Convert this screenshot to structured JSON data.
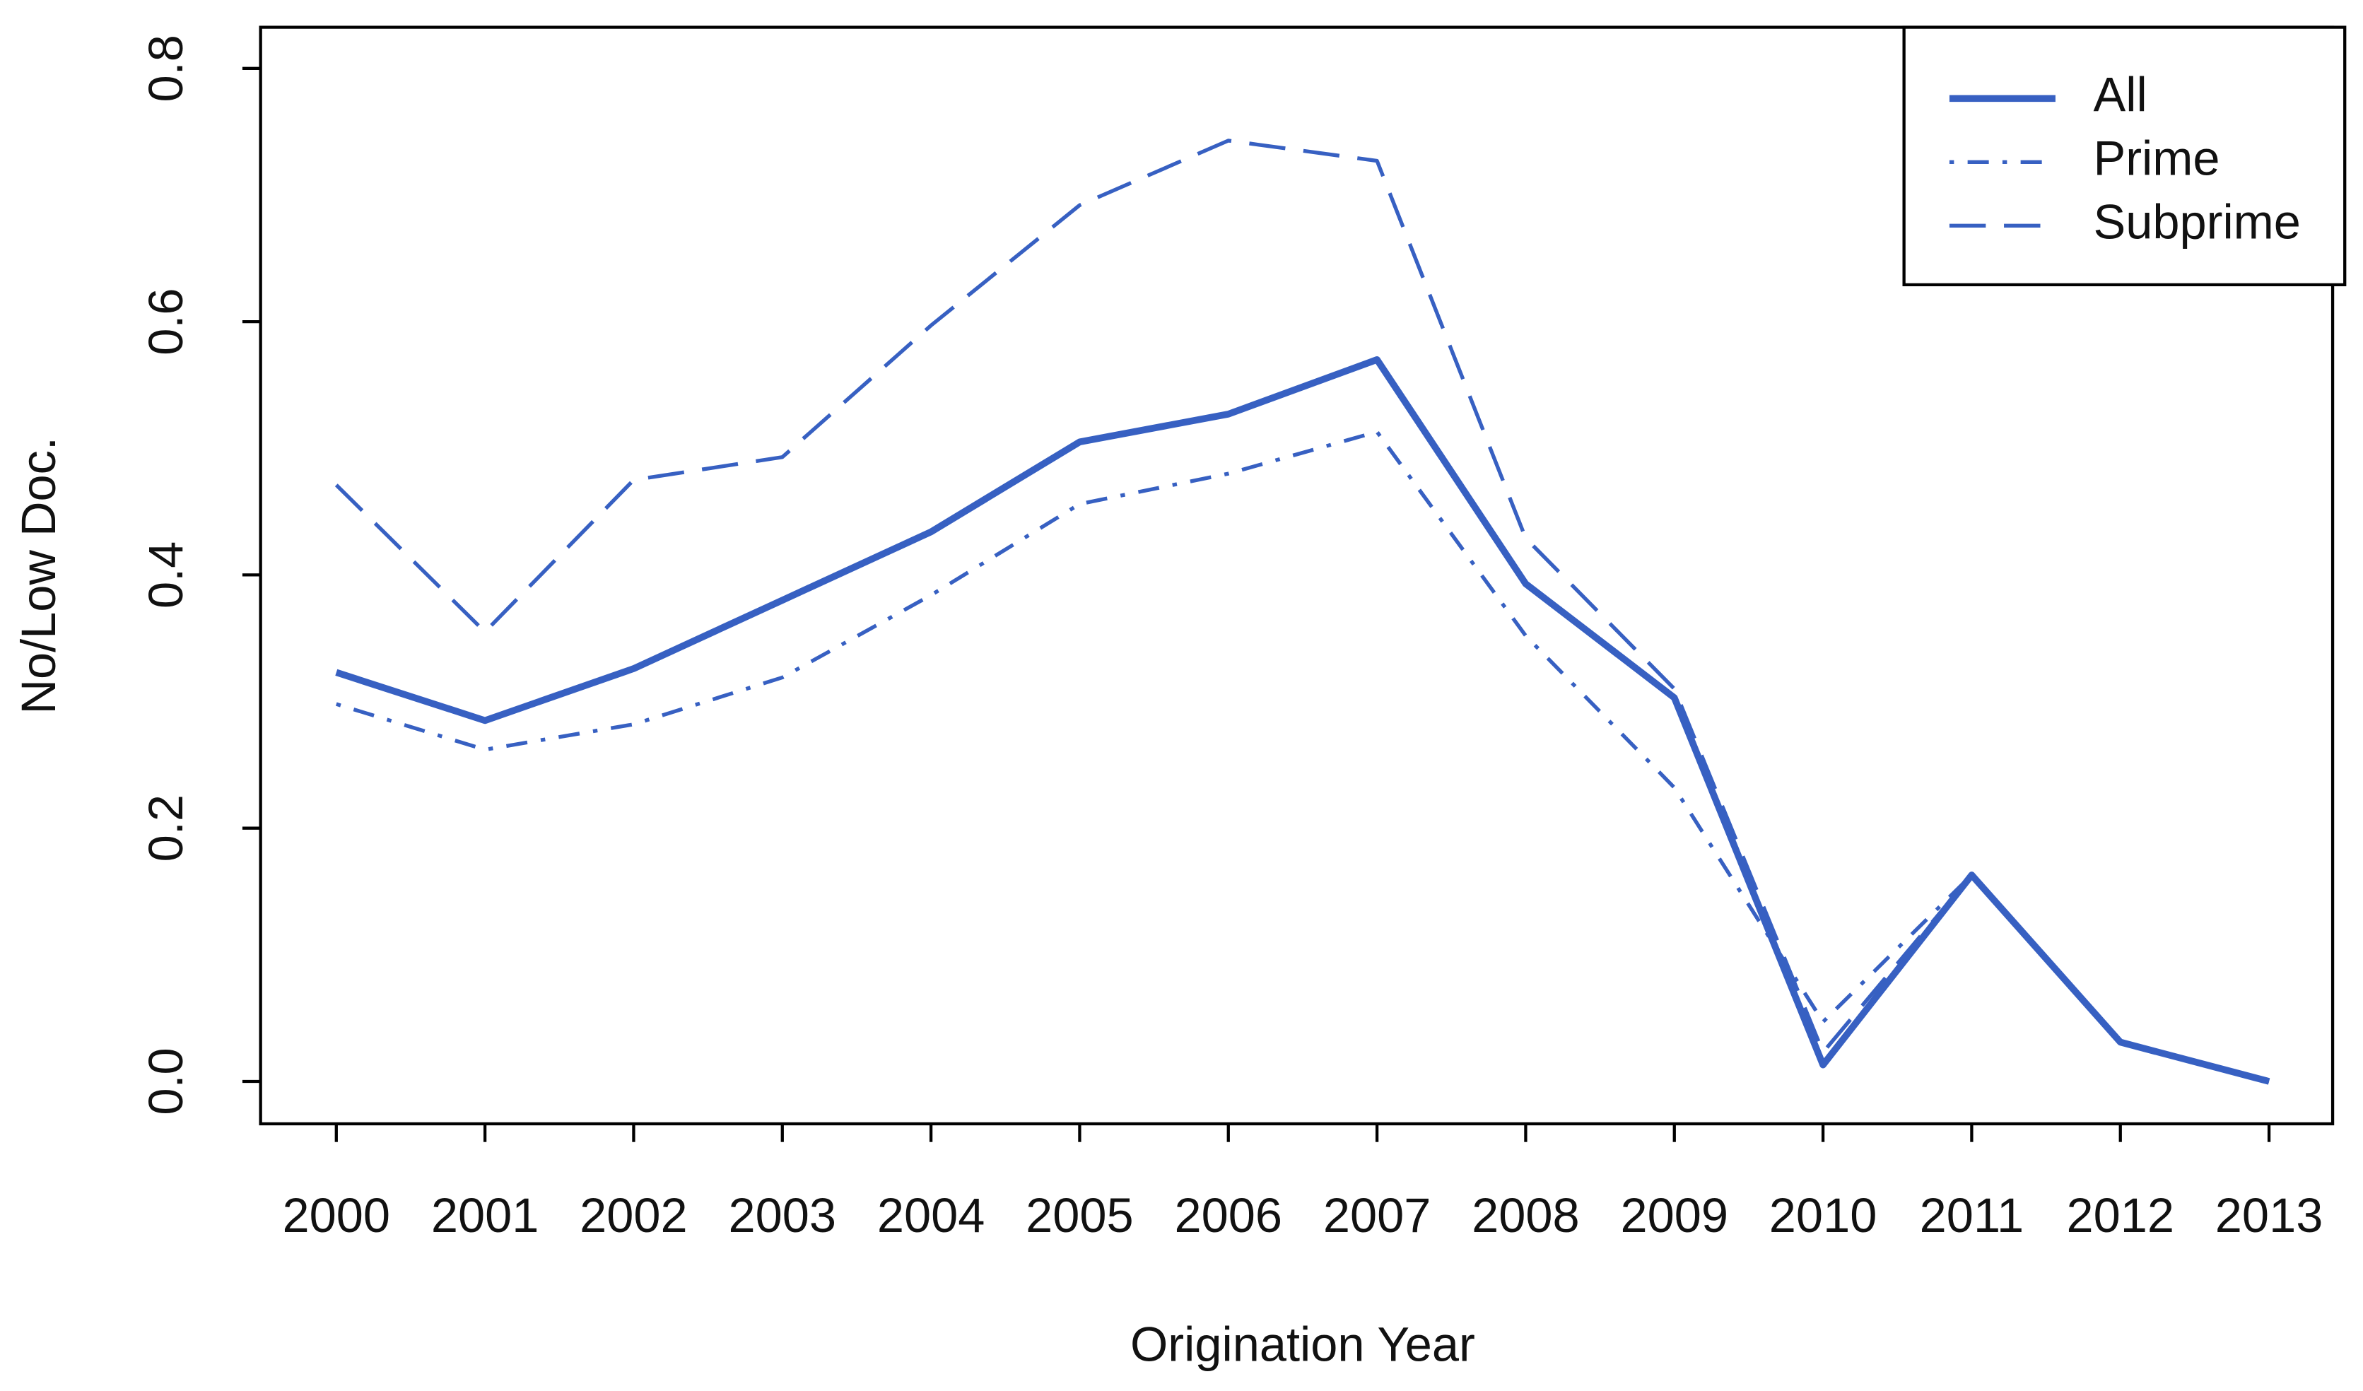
{
  "chart_data": {
    "type": "line",
    "xlabel": "Origination Year",
    "ylabel": "No/Low Doc.",
    "categories": [
      "2000",
      "2001",
      "2002",
      "2003",
      "2004",
      "2005",
      "2006",
      "2007",
      "2008",
      "2009",
      "2010",
      "2011",
      "2012",
      "2013"
    ],
    "series": [
      {
        "name": "All",
        "color": "#3760c2",
        "dash": "solid",
        "values": [
          0.323,
          0.285,
          0.326,
          0.38,
          0.434,
          0.505,
          0.527,
          0.57,
          0.393,
          0.303,
          0.013,
          0.163,
          0.031,
          0.0
        ]
      },
      {
        "name": "Prime",
        "color": "#3760c2",
        "dash": "dotdash",
        "values": [
          0.298,
          0.262,
          0.282,
          0.319,
          0.384,
          0.456,
          0.48,
          0.513,
          0.352,
          0.232,
          0.047,
          0.163,
          0.031,
          0.0
        ]
      },
      {
        "name": "Subprime",
        "color": "#3760c2",
        "dash": "dashed",
        "values": [
          0.471,
          0.355,
          0.475,
          0.493,
          0.597,
          0.692,
          0.743,
          0.727,
          0.429,
          0.31,
          0.023,
          0.163,
          0.031,
          0.0
        ]
      }
    ],
    "ylim": [
      -0.0335,
      0.8325
    ],
    "yticks": [
      {
        "value": 0,
        "label": "0.0"
      },
      0.2,
      0.4,
      0.6,
      {
        "value": 0.8,
        "label": "0.8"
      }
    ],
    "legend": "topright"
  }
}
